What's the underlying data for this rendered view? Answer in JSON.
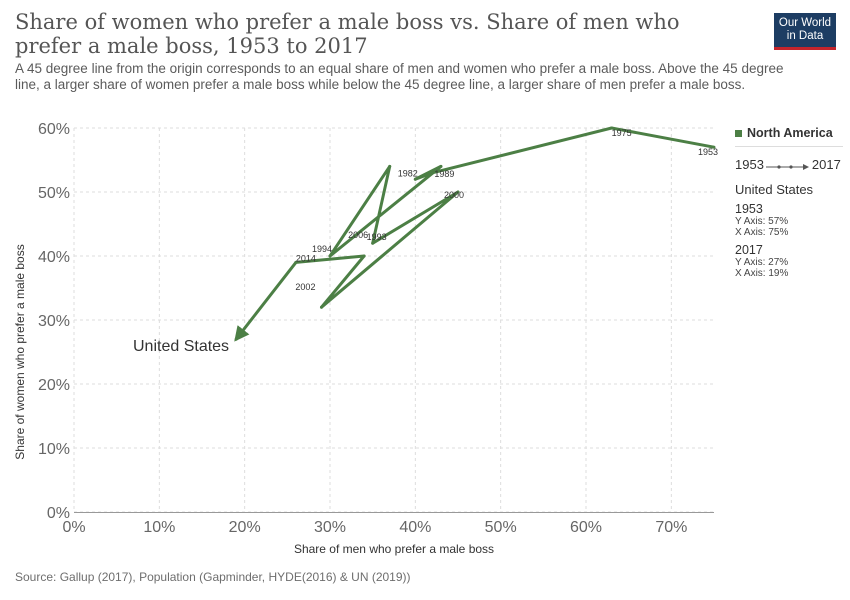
{
  "header": {
    "title": "Share of women who prefer a male boss vs. Share of men who prefer a male boss, 1953 to 2017",
    "subtitle": "A 45 degree line from the origin corresponds to an equal share of men and women who prefer a male boss. Above the 45 degree line, a larger share of women prefer a male boss while below the 45 degree line, a larger share of men prefer a male boss.",
    "logo_line1": "Our World",
    "logo_line2": "in Data"
  },
  "source": "Source: Gallup (2017), Population (Gapminder, HYDE(2016) & UN (2019))",
  "legend": {
    "series_label": "North America",
    "timeline_start": "1953",
    "timeline_end": "2017",
    "entity": "United States",
    "start_year": "1953",
    "start_y": "Y Axis: 57%",
    "start_x": "X Axis: 75%",
    "end_year": "2017",
    "end_y": "Y Axis: 27%",
    "end_x": "X Axis: 19%"
  },
  "colors": {
    "series": "#4c7f45",
    "grid": "#dddddd",
    "axis": "#666666"
  },
  "chart_data": {
    "type": "scatter",
    "connected": true,
    "title": "Share of women who prefer a male boss vs. Share of men who prefer a male boss, 1953 to 2017",
    "xlabel": "Share of men who prefer a male boss",
    "ylabel": "Share of women who prefer a male boss",
    "xlim": [
      0,
      75
    ],
    "ylim": [
      0,
      60
    ],
    "xticks": [
      0,
      10,
      20,
      30,
      40,
      50,
      60,
      70
    ],
    "yticks": [
      0,
      10,
      20,
      30,
      40,
      50,
      60
    ],
    "x_tick_labels": [
      "0%",
      "10%",
      "20%",
      "30%",
      "40%",
      "50%",
      "60%",
      "70%"
    ],
    "y_tick_labels": [
      "0%",
      "10%",
      "20%",
      "30%",
      "40%",
      "50%",
      "60%"
    ],
    "grid": true,
    "legend_position": "right",
    "series": [
      {
        "name": "United States",
        "points": [
          {
            "year": "1953",
            "x": 75,
            "y": 57
          },
          {
            "year": "1975",
            "x": 63,
            "y": 60
          },
          {
            "year": "1989",
            "x": 42,
            "y": 53
          },
          {
            "year": "",
            "x": 40,
            "y": 52
          },
          {
            "year": "",
            "x": 43,
            "y": 54
          },
          {
            "year": "1994",
            "x": 30,
            "y": 40
          },
          {
            "year": "1982",
            "x": 37,
            "y": 54
          },
          {
            "year": "1993",
            "x": 35,
            "y": 42
          },
          {
            "year": "2000",
            "x": 45,
            "y": 50
          },
          {
            "year": "2002",
            "x": 29,
            "y": 32
          },
          {
            "year": "2006",
            "x": 34,
            "y": 40
          },
          {
            "year": "2014",
            "x": 26,
            "y": 39
          },
          {
            "year": "2017",
            "x": 19,
            "y": 27
          }
        ]
      }
    ],
    "annotations": [
      "United States"
    ]
  }
}
